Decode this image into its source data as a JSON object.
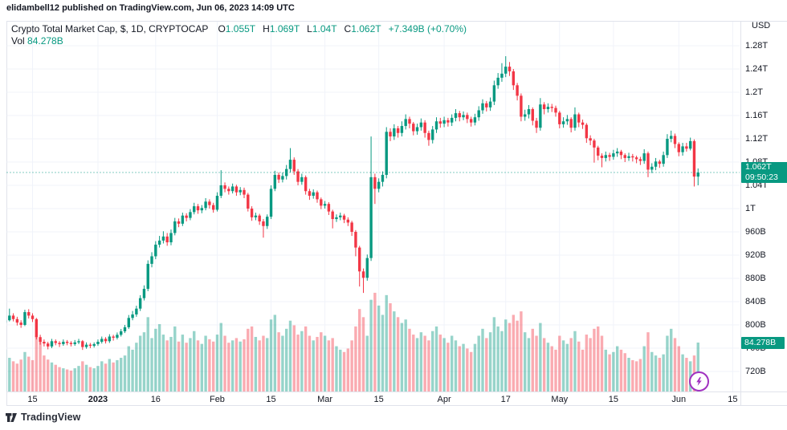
{
  "header": {
    "caption": "elidambell12 published on TradingView.com, Jun 06, 2023 14:09 UTC"
  },
  "legend": {
    "title": "Crypto Total Market Cap, $, 1D, CRYPTOCAP",
    "ohlc": [
      {
        "label": "O",
        "value": "1.055T"
      },
      {
        "label": "H",
        "value": "1.069T"
      },
      {
        "label": "L",
        "value": "1.04T"
      },
      {
        "label": "C",
        "value": "1.062T"
      }
    ],
    "change": "+7.349B (+0.70%)",
    "vol_label": "Vol",
    "vol_value": "84.278B"
  },
  "badges": {
    "last_price": "1.062T",
    "countdown": "09:50:23",
    "last_volume": "84.278B"
  },
  "footer": {
    "logo_text": "TradingView"
  },
  "icons": {
    "lightning": "lightning-bolt",
    "logo": "tradingview-mark"
  },
  "chart_data": {
    "type": "candlestick",
    "title": "Crypto Total Market Cap, $, 1D, CRYPTOCAP",
    "unit": "billions of USD",
    "legend_position": "top-left",
    "grid": true,
    "price_axis": {
      "unit": "USD",
      "ticks": [
        {
          "label": "1.28T",
          "value": 1280
        },
        {
          "label": "1.24T",
          "value": 1240
        },
        {
          "label": "1.2T",
          "value": 1200
        },
        {
          "label": "1.16T",
          "value": 1160
        },
        {
          "label": "1.12T",
          "value": 1120
        },
        {
          "label": "1.08T",
          "value": 1080
        },
        {
          "label": "1.04T",
          "value": 1040
        },
        {
          "label": "1T",
          "value": 1000
        },
        {
          "label": "960B",
          "value": 960
        },
        {
          "label": "920B",
          "value": 920
        },
        {
          "label": "880B",
          "value": 880
        },
        {
          "label": "840B",
          "value": 840
        },
        {
          "label": "800B",
          "value": 800
        },
        {
          "label": "760B",
          "value": 760
        },
        {
          "label": "720B",
          "value": 720
        }
      ]
    },
    "time_axis": {
      "ticks": [
        {
          "label": "15",
          "day": 7
        },
        {
          "label": "2023",
          "day": 24,
          "bold": true
        },
        {
          "label": "16",
          "day": 39
        },
        {
          "label": "Feb",
          "day": 55
        },
        {
          "label": "15",
          "day": 69
        },
        {
          "label": "Mar",
          "day": 83
        },
        {
          "label": "15",
          "day": 97
        },
        {
          "label": "Apr",
          "day": 114
        },
        {
          "label": "17",
          "day": 130
        },
        {
          "label": "May",
          "day": 144
        },
        {
          "label": "15",
          "day": 158
        },
        {
          "label": "Jun",
          "day": 175
        },
        {
          "label": "15",
          "day": 189
        }
      ]
    },
    "last_bar": {
      "open": 1055,
      "high": 1069,
      "low": 1040,
      "close": 1062,
      "volume_b": 84.278
    },
    "price_line_value": 1062,
    "colors": {
      "up": "#089981",
      "down": "#f23645",
      "vol_up": "rgba(8,153,129,0.42)",
      "vol_down": "rgba(242,54,69,0.42)",
      "grid": "#f0f3fa",
      "frame": "#e0e3eb",
      "text": "#131722",
      "accent_purple": "#a031c0"
    },
    "candles_format": "[open, high, low, close, volume] in billions USD, daily from Dec 8 2022 to Jun 6 2023",
    "candles": [
      [
        804,
        814,
        800,
        808,
        72
      ],
      [
        808,
        828,
        806,
        816,
        58
      ],
      [
        816,
        820,
        806,
        810,
        52
      ],
      [
        810,
        814,
        799,
        804,
        48
      ],
      [
        804,
        808,
        795,
        800,
        55
      ],
      [
        800,
        826,
        798,
        822,
        68
      ],
      [
        822,
        827,
        811,
        816,
        60
      ],
      [
        816,
        820,
        805,
        810,
        54
      ],
      [
        810,
        812,
        775,
        779,
        96
      ],
      [
        779,
        783,
        766,
        771,
        88
      ],
      [
        771,
        775,
        763,
        768,
        62
      ],
      [
        768,
        771,
        758,
        763,
        55
      ],
      [
        763,
        776,
        760,
        772,
        50
      ],
      [
        772,
        775,
        765,
        769,
        46
      ],
      [
        769,
        772,
        762,
        767,
        42
      ],
      [
        767,
        775,
        764,
        771,
        40
      ],
      [
        771,
        774,
        765,
        769,
        38
      ],
      [
        769,
        772,
        763,
        767,
        36
      ],
      [
        767,
        774,
        764,
        770,
        40
      ],
      [
        770,
        776,
        767,
        772,
        44
      ],
      [
        772,
        774,
        757,
        762,
        52
      ],
      [
        762,
        770,
        759,
        766,
        46
      ],
      [
        766,
        769,
        760,
        764,
        42
      ],
      [
        764,
        770,
        761,
        767,
        40
      ],
      [
        767,
        775,
        764,
        771,
        44
      ],
      [
        771,
        780,
        768,
        776,
        52
      ],
      [
        776,
        779,
        768,
        772,
        48
      ],
      [
        772,
        784,
        769,
        780,
        56
      ],
      [
        780,
        783,
        773,
        778,
        50
      ],
      [
        778,
        787,
        775,
        783,
        54
      ],
      [
        783,
        793,
        780,
        789,
        58
      ],
      [
        789,
        800,
        786,
        796,
        62
      ],
      [
        796,
        817,
        793,
        812,
        78
      ],
      [
        812,
        824,
        808,
        818,
        72
      ],
      [
        818,
        833,
        814,
        828,
        84
      ],
      [
        828,
        851,
        824,
        846,
        96
      ],
      [
        846,
        868,
        842,
        862,
        102
      ],
      [
        862,
        911,
        858,
        905,
        128
      ],
      [
        905,
        925,
        899,
        918,
        92
      ],
      [
        918,
        944,
        913,
        938,
        108
      ],
      [
        938,
        953,
        933,
        945,
        116
      ],
      [
        945,
        961,
        940,
        952,
        98
      ],
      [
        952,
        958,
        936,
        942,
        88
      ],
      [
        942,
        964,
        937,
        958,
        94
      ],
      [
        958,
        984,
        954,
        978,
        112
      ],
      [
        978,
        983,
        968,
        974,
        86
      ],
      [
        974,
        993,
        970,
        988,
        98
      ],
      [
        988,
        992,
        978,
        984,
        84
      ],
      [
        984,
        999,
        980,
        994,
        92
      ],
      [
        994,
        1010,
        990,
        1004,
        104
      ],
      [
        1004,
        1008,
        991,
        997,
        88
      ],
      [
        997,
        1006,
        992,
        1001,
        82
      ],
      [
        1001,
        1018,
        997,
        1012,
        96
      ],
      [
        1012,
        1016,
        1000,
        1006,
        90
      ],
      [
        1006,
        1010,
        993,
        998,
        86
      ],
      [
        998,
        1028,
        995,
        1022,
        98
      ],
      [
        1022,
        1066,
        1018,
        1040,
        118
      ],
      [
        1040,
        1045,
        1028,
        1034,
        96
      ],
      [
        1034,
        1038,
        1024,
        1030,
        84
      ],
      [
        1030,
        1043,
        1026,
        1038,
        88
      ],
      [
        1038,
        1041,
        1022,
        1028,
        92
      ],
      [
        1028,
        1037,
        1023,
        1032,
        86
      ],
      [
        1032,
        1036,
        1018,
        1024,
        90
      ],
      [
        1024,
        1027,
        995,
        1000,
        108
      ],
      [
        1000,
        1004,
        979,
        985,
        112
      ],
      [
        985,
        993,
        980,
        988,
        94
      ],
      [
        988,
        991,
        972,
        978,
        88
      ],
      [
        978,
        982,
        950,
        970,
        96
      ],
      [
        970,
        990,
        965,
        986,
        92
      ],
      [
        986,
        1040,
        982,
        1034,
        124
      ],
      [
        1034,
        1065,
        1030,
        1058,
        132
      ],
      [
        1058,
        1062,
        1044,
        1050,
        102
      ],
      [
        1050,
        1062,
        1045,
        1056,
        96
      ],
      [
        1056,
        1075,
        1050,
        1068,
        108
      ],
      [
        1068,
        1104,
        1062,
        1084,
        122
      ],
      [
        1084,
        1088,
        1058,
        1064,
        114
      ],
      [
        1064,
        1068,
        1040,
        1046,
        98
      ],
      [
        1046,
        1060,
        1041,
        1054,
        104
      ],
      [
        1054,
        1057,
        1024,
        1030,
        112
      ],
      [
        1030,
        1034,
        1015,
        1022,
        96
      ],
      [
        1022,
        1033,
        1017,
        1028,
        88
      ],
      [
        1028,
        1031,
        1010,
        1016,
        94
      ],
      [
        1016,
        1019,
        999,
        1005,
        102
      ],
      [
        1005,
        1013,
        1000,
        1008,
        96
      ],
      [
        1008,
        1011,
        989,
        995,
        88
      ],
      [
        995,
        998,
        966,
        982,
        92
      ],
      [
        982,
        990,
        977,
        985,
        78
      ],
      [
        985,
        993,
        980,
        988,
        72
      ],
      [
        988,
        991,
        975,
        981,
        68
      ],
      [
        981,
        985,
        970,
        976,
        74
      ],
      [
        976,
        979,
        953,
        960,
        88
      ],
      [
        960,
        963,
        918,
        933,
        112
      ],
      [
        933,
        936,
        866,
        892,
        142
      ],
      [
        892,
        897,
        855,
        881,
        128
      ],
      [
        881,
        921,
        876,
        915,
        96
      ],
      [
        915,
        1124,
        910,
        1054,
        158
      ],
      [
        1054,
        1060,
        1008,
        1034,
        170
      ],
      [
        1034,
        1052,
        1028,
        1046,
        148
      ],
      [
        1046,
        1064,
        1038,
        1058,
        132
      ],
      [
        1058,
        1140,
        1052,
        1132,
        166
      ],
      [
        1132,
        1138,
        1116,
        1124,
        152
      ],
      [
        1124,
        1145,
        1118,
        1138,
        138
      ],
      [
        1138,
        1142,
        1122,
        1130,
        128
      ],
      [
        1130,
        1150,
        1124,
        1142,
        118
      ],
      [
        1142,
        1162,
        1136,
        1154,
        124
      ],
      [
        1154,
        1158,
        1138,
        1146,
        108
      ],
      [
        1146,
        1149,
        1126,
        1133,
        98
      ],
      [
        1133,
        1146,
        1127,
        1140,
        92
      ],
      [
        1140,
        1155,
        1134,
        1148,
        102
      ],
      [
        1148,
        1152,
        1122,
        1130,
        96
      ],
      [
        1130,
        1134,
        1108,
        1118,
        88
      ],
      [
        1118,
        1142,
        1112,
        1136,
        104
      ],
      [
        1136,
        1157,
        1130,
        1150,
        112
      ],
      [
        1150,
        1156,
        1139,
        1146,
        98
      ],
      [
        1146,
        1158,
        1140,
        1152,
        92
      ],
      [
        1152,
        1156,
        1141,
        1148,
        84
      ],
      [
        1148,
        1162,
        1142,
        1156,
        96
      ],
      [
        1156,
        1171,
        1150,
        1164,
        88
      ],
      [
        1164,
        1168,
        1150,
        1157,
        78
      ],
      [
        1157,
        1167,
        1152,
        1161,
        82
      ],
      [
        1161,
        1165,
        1147,
        1154,
        74
      ],
      [
        1154,
        1158,
        1141,
        1148,
        68
      ],
      [
        1148,
        1163,
        1143,
        1157,
        82
      ],
      [
        1157,
        1176,
        1151,
        1169,
        96
      ],
      [
        1169,
        1188,
        1163,
        1181,
        108
      ],
      [
        1181,
        1185,
        1167,
        1174,
        92
      ],
      [
        1174,
        1191,
        1168,
        1184,
        102
      ],
      [
        1184,
        1220,
        1178,
        1212,
        128
      ],
      [
        1212,
        1233,
        1206,
        1225,
        112
      ],
      [
        1225,
        1250,
        1218,
        1232,
        104
      ],
      [
        1232,
        1262,
        1226,
        1244,
        124
      ],
      [
        1244,
        1252,
        1228,
        1236,
        118
      ],
      [
        1236,
        1240,
        1204,
        1212,
        132
      ],
      [
        1212,
        1216,
        1186,
        1194,
        122
      ],
      [
        1194,
        1198,
        1150,
        1158,
        138
      ],
      [
        1158,
        1170,
        1151,
        1162,
        102
      ],
      [
        1162,
        1178,
        1155,
        1171,
        92
      ],
      [
        1171,
        1174,
        1143,
        1151,
        108
      ],
      [
        1151,
        1156,
        1130,
        1139,
        96
      ],
      [
        1139,
        1190,
        1134,
        1179,
        118
      ],
      [
        1179,
        1183,
        1162,
        1171,
        92
      ],
      [
        1171,
        1181,
        1165,
        1175,
        84
      ],
      [
        1175,
        1180,
        1166,
        1173,
        78
      ],
      [
        1173,
        1177,
        1158,
        1165,
        72
      ],
      [
        1165,
        1168,
        1138,
        1145,
        96
      ],
      [
        1145,
        1157,
        1139,
        1150,
        88
      ],
      [
        1150,
        1161,
        1144,
        1154,
        82
      ],
      [
        1154,
        1157,
        1131,
        1139,
        92
      ],
      [
        1139,
        1174,
        1134,
        1162,
        104
      ],
      [
        1162,
        1165,
        1140,
        1148,
        86
      ],
      [
        1148,
        1153,
        1137,
        1144,
        72
      ],
      [
        1144,
        1147,
        1113,
        1121,
        98
      ],
      [
        1121,
        1126,
        1109,
        1117,
        92
      ],
      [
        1117,
        1120,
        1079,
        1105,
        108
      ],
      [
        1105,
        1108,
        1083,
        1091,
        112
      ],
      [
        1091,
        1095,
        1071,
        1087,
        96
      ],
      [
        1087,
        1098,
        1081,
        1092,
        72
      ],
      [
        1092,
        1096,
        1082,
        1089,
        64
      ],
      [
        1089,
        1101,
        1084,
        1095,
        68
      ],
      [
        1095,
        1104,
        1089,
        1098,
        78
      ],
      [
        1098,
        1101,
        1085,
        1092,
        72
      ],
      [
        1092,
        1095,
        1080,
        1087,
        66
      ],
      [
        1087,
        1096,
        1082,
        1090,
        58
      ],
      [
        1090,
        1094,
        1081,
        1088,
        54
      ],
      [
        1088,
        1091,
        1078,
        1085,
        52
      ],
      [
        1085,
        1089,
        1075,
        1082,
        56
      ],
      [
        1082,
        1102,
        1077,
        1095,
        78
      ],
      [
        1095,
        1098,
        1054,
        1067,
        102
      ],
      [
        1067,
        1078,
        1061,
        1072,
        68
      ],
      [
        1072,
        1087,
        1066,
        1081,
        62
      ],
      [
        1081,
        1084,
        1070,
        1077,
        58
      ],
      [
        1077,
        1098,
        1072,
        1092,
        64
      ],
      [
        1092,
        1128,
        1087,
        1120,
        96
      ],
      [
        1120,
        1134,
        1114,
        1125,
        108
      ],
      [
        1125,
        1129,
        1104,
        1111,
        92
      ],
      [
        1111,
        1114,
        1090,
        1097,
        78
      ],
      [
        1097,
        1113,
        1091,
        1107,
        64
      ],
      [
        1107,
        1113,
        1098,
        1103,
        58
      ],
      [
        1103,
        1122,
        1100,
        1116,
        52
      ],
      [
        1116,
        1119,
        1038,
        1055,
        62
      ],
      [
        1055,
        1069,
        1040,
        1062,
        84.278
      ]
    ]
  }
}
